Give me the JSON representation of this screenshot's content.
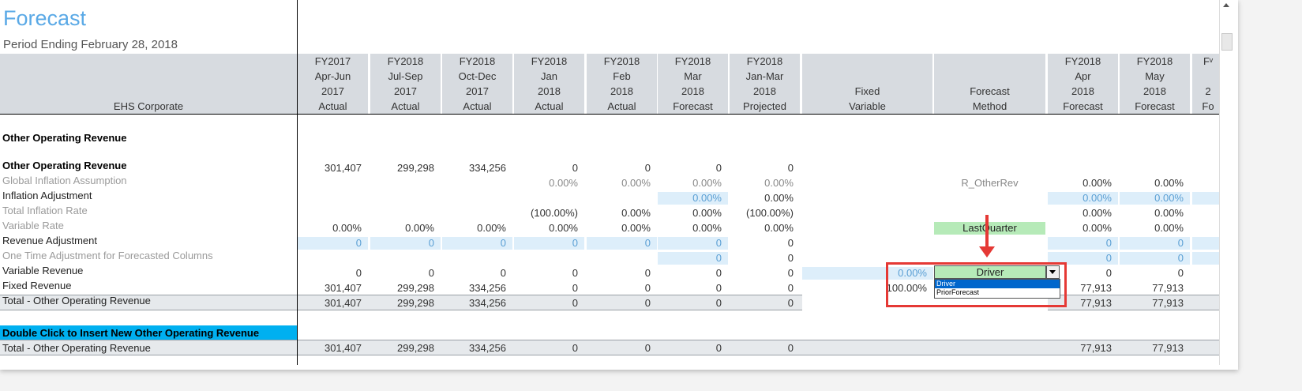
{
  "title": "Forecast",
  "subtitle": "Period Ending February 28, 2018",
  "entity_label": "EHS Corporate",
  "columns": [
    {
      "l1": "FY2017",
      "l2": "Apr-Jun",
      "l3": "2017",
      "l4": "Actual"
    },
    {
      "l1": "FY2018",
      "l2": "Jul-Sep",
      "l3": "2017",
      "l4": "Actual"
    },
    {
      "l1": "FY2018",
      "l2": "Oct-Dec",
      "l3": "2017",
      "l4": "Actual"
    },
    {
      "l1": "FY2018",
      "l2": "Jan",
      "l3": "2018",
      "l4": "Actual"
    },
    {
      "l1": "FY2018",
      "l2": "Feb",
      "l3": "2018",
      "l4": "Actual"
    },
    {
      "l1": "FY2018",
      "l2": "Mar",
      "l3": "2018",
      "l4": "Forecast"
    },
    {
      "l1": "FY2018",
      "l2": "Jan-Mar",
      "l3": "2018",
      "l4": "Projected"
    },
    {
      "l1": "",
      "l2": "",
      "l3": "Fixed",
      "l4": "Variable"
    },
    {
      "l1": "",
      "l2": "",
      "l3": "Forecast",
      "l4": "Method"
    },
    {
      "l1": "FY2018",
      "l2": "Apr",
      "l3": "2018",
      "l4": "Forecast"
    },
    {
      "l1": "FY2018",
      "l2": "May",
      "l3": "2018",
      "l4": "Forecast"
    },
    {
      "l1": "Fᵛ",
      "l2": "",
      "l3": "2",
      "l4": "Fo"
    }
  ],
  "section_title": "Other Operating Revenue",
  "rows": [
    {
      "label": "Other Operating Revenue",
      "cells": [
        "301,407",
        "299,298",
        "334,256",
        "0",
        "0",
        "0",
        "0",
        "",
        "",
        "",
        "",
        ""
      ]
    },
    {
      "label": "Global Inflation Assumption",
      "cells": [
        "",
        "",
        "",
        "0.00%",
        "0.00%",
        "0.00%",
        "0.00%",
        "",
        "R_OtherRev",
        "0.00%",
        "0.00%",
        ""
      ]
    },
    {
      "label": "Inflation Adjustment",
      "cells": [
        "",
        "",
        "",
        "",
        "",
        "0.00%",
        "0.00%",
        "",
        "",
        "0.00%",
        "0.00%",
        ""
      ]
    },
    {
      "label": "Total Inflation Rate",
      "cells": [
        "",
        "",
        "",
        "(100.00%)",
        "0.00%",
        "0.00%",
        "(100.00%)",
        "",
        "",
        "0.00%",
        "0.00%",
        ""
      ]
    },
    {
      "label": "Variable Rate",
      "cells": [
        "0.00%",
        "0.00%",
        "0.00%",
        "0.00%",
        "0.00%",
        "0.00%",
        "0.00%",
        "",
        "LastQuarter",
        "0.00%",
        "0.00%",
        ""
      ]
    },
    {
      "label": "Revenue Adjustment",
      "cells": [
        "0",
        "0",
        "0",
        "0",
        "0",
        "0",
        "0",
        "",
        "",
        "0",
        "0",
        ""
      ]
    },
    {
      "label": "One Time Adjustment for Forecasted Columns",
      "cells": [
        "",
        "",
        "",
        "",
        "",
        "0",
        "0",
        "",
        "",
        "0",
        "0",
        ""
      ]
    },
    {
      "label": "Variable Revenue",
      "cells": [
        "0",
        "0",
        "0",
        "0",
        "0",
        "0",
        "0",
        "0.00%",
        "",
        "0",
        "0",
        ""
      ]
    },
    {
      "label": "Fixed Revenue",
      "cells": [
        "301,407",
        "299,298",
        "334,256",
        "0",
        "0",
        "0",
        "0",
        "100.00%",
        "",
        "77,913",
        "77,913",
        ""
      ]
    },
    {
      "label": "Total - Other Operating Revenue",
      "cells": [
        "301,407",
        "299,298",
        "334,256",
        "0",
        "0",
        "0",
        "0",
        "",
        "",
        "77,913",
        "77,913",
        ""
      ]
    }
  ],
  "insert_label": "Double Click to Insert New Other Operating Revenue",
  "grand_total": {
    "label": "Total - Other Operating Revenue",
    "cells": [
      "301,407",
      "299,298",
      "334,256",
      "0",
      "0",
      "0",
      "0",
      "",
      "",
      "77,913",
      "77,913",
      ""
    ]
  },
  "dropdown": {
    "selected": "Driver",
    "options": [
      "Driver",
      "PriorForecast"
    ]
  },
  "colors": {
    "title": "#5aa9e6",
    "header_bg": "#d7dbe0",
    "input_blue": "#ddeefa",
    "insert_bar": "#00b0f0",
    "highlight_green": "#b6eab8",
    "annotation_red": "#e53935"
  }
}
